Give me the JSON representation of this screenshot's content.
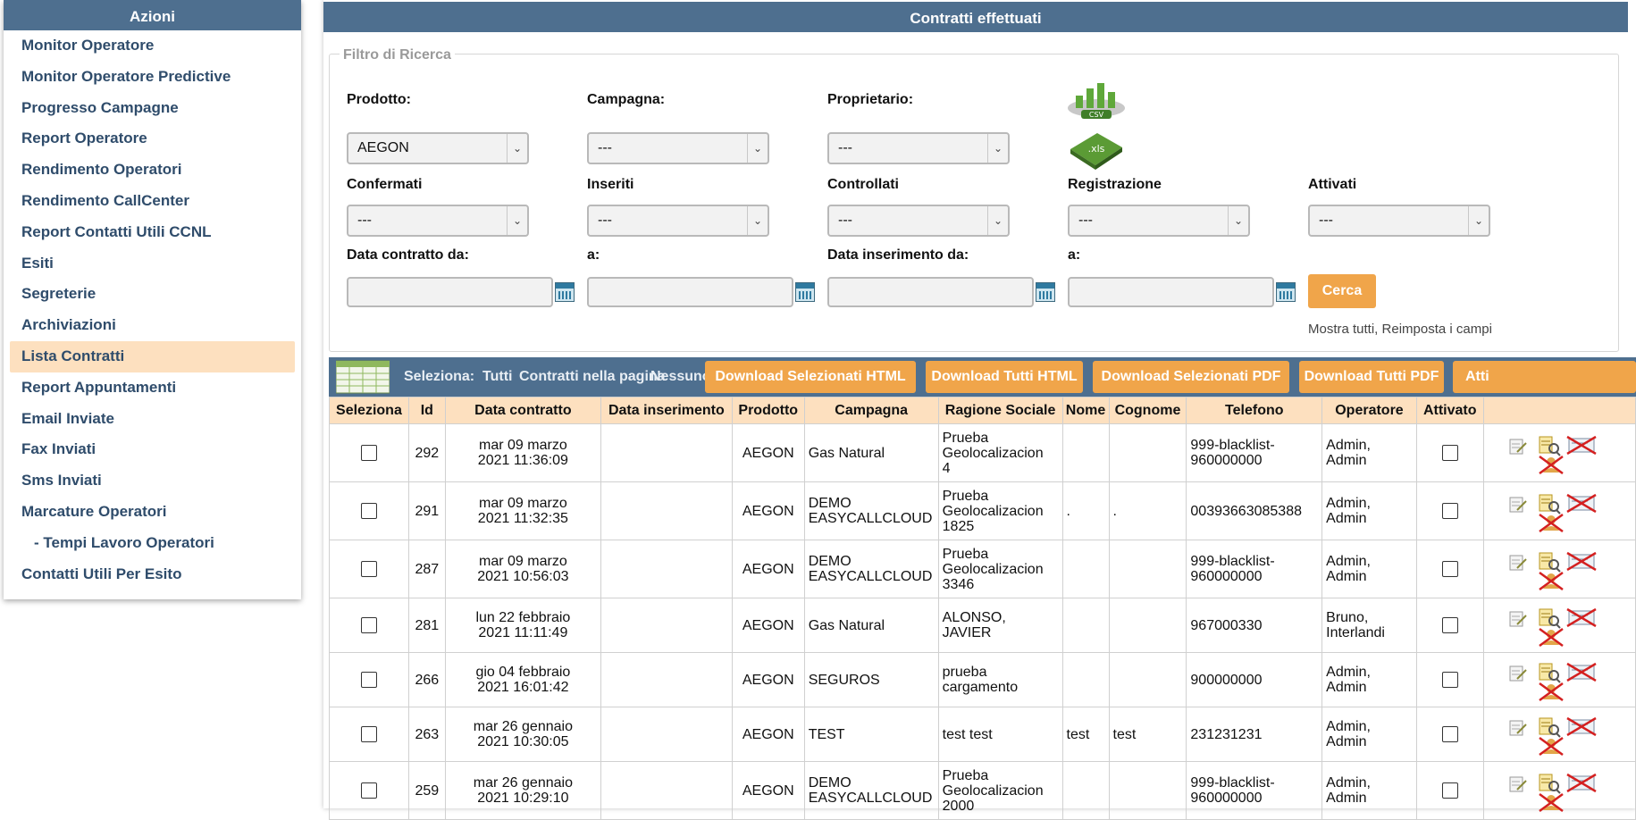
{
  "sidebar": {
    "title": "Azioni",
    "items": [
      {
        "label": "Monitor Operatore"
      },
      {
        "label": "Monitor Operatore Predictive"
      },
      {
        "label": "Progresso Campagne"
      },
      {
        "label": "Report Operatore"
      },
      {
        "label": "Rendimento Operatori"
      },
      {
        "label": "Rendimento CallCenter"
      },
      {
        "label": "Report Contatti Utili CCNL"
      },
      {
        "label": "Esiti"
      },
      {
        "label": "Segreterie"
      },
      {
        "label": "Archiviazioni"
      },
      {
        "label": "Lista Contratti"
      },
      {
        "label": "Report Appuntamenti"
      },
      {
        "label": "Email Inviate"
      },
      {
        "label": "Fax Inviati"
      },
      {
        "label": "Sms Inviati"
      },
      {
        "label": "Marcature Operatori"
      },
      {
        "label": "- Tempi Lavoro Operatori"
      },
      {
        "label": "Contatti Utili Per Esito"
      }
    ]
  },
  "main": {
    "title": "Contratti effettuati",
    "filter": {
      "legend": "Filtro di Ricerca",
      "prodotto": {
        "label": "Prodotto:",
        "value": "AEGON"
      },
      "campagna": {
        "label": "Campagna:",
        "value": "---"
      },
      "proprietario": {
        "label": "Proprietario:",
        "value": "---"
      },
      "confermati": {
        "label": "Confermati",
        "value": "---"
      },
      "inseriti": {
        "label": "Inseriti",
        "value": "---"
      },
      "controllati": {
        "label": "Controllati",
        "value": "---"
      },
      "registrazione": {
        "label": "Registrazione",
        "value": "---"
      },
      "attivati": {
        "label": "Attivati",
        "value": "---"
      },
      "data_contratto_da": {
        "label": "Data contratto da:",
        "value": ""
      },
      "data_contratto_a": {
        "label": "a:",
        "value": ""
      },
      "data_inserimento_da": {
        "label": "Data inserimento da:",
        "value": ""
      },
      "data_inserimento_a": {
        "label": "a:",
        "value": ""
      },
      "search_button": "Cerca",
      "show_all": "Mostra tutti, Reimposta i campi",
      "csv_label": "CSV",
      "xls_label": ".xls"
    },
    "toolbar": {
      "seleziona": "Seleziona:",
      "tutti": "Tutti",
      "contratti_pagina": "Contratti nella pagina",
      "nessuno": "Nessuno",
      "buttons": [
        "Download Selezionati HTML",
        "Download Tutti HTML",
        "Download Selezionati PDF",
        "Download Tutti PDF",
        "Atti"
      ]
    },
    "table": {
      "headers": [
        "Seleziona",
        "Id",
        "Data contratto",
        "Data inserimento",
        "Prodotto",
        "Campagna",
        "Ragione Sociale",
        "Nome",
        "Cognome",
        "Telefono",
        "Operatore",
        "Attivato",
        ""
      ],
      "rows": [
        {
          "id": "292",
          "data1": "mar 09 marzo",
          "data2": "2021 11:36:09",
          "inserimento": "",
          "prodotto": "AEGON",
          "campagna1": "Gas Natural",
          "campagna2": "",
          "ragione1": "Prueba",
          "ragione2": "Geolocalizacion",
          "ragione3": "4",
          "nome": "",
          "cognome": "",
          "tel1": "999-blacklist-",
          "tel2": "960000000",
          "op1": "Admin,",
          "op2": "Admin"
        },
        {
          "id": "291",
          "data1": "mar 09 marzo",
          "data2": "2021 11:32:35",
          "inserimento": "",
          "prodotto": "AEGON",
          "campagna1": "DEMO",
          "campagna2": "EASYCALLCLOUD",
          "ragione1": "Prueba",
          "ragione2": "Geolocalizacion",
          "ragione3": "1825",
          "nome": ".",
          "cognome": ".",
          "tel1": "00393663085388",
          "tel2": "",
          "op1": "Admin,",
          "op2": "Admin"
        },
        {
          "id": "287",
          "data1": "mar 09 marzo",
          "data2": "2021 10:56:03",
          "inserimento": "",
          "prodotto": "AEGON",
          "campagna1": "DEMO",
          "campagna2": "EASYCALLCLOUD",
          "ragione1": "Prueba",
          "ragione2": "Geolocalizacion",
          "ragione3": "3346",
          "nome": "",
          "cognome": "",
          "tel1": "999-blacklist-",
          "tel2": "960000000",
          "op1": "Admin,",
          "op2": "Admin"
        },
        {
          "id": "281",
          "data1": "lun 22 febbraio",
          "data2": "2021 11:11:49",
          "inserimento": "",
          "prodotto": "AEGON",
          "campagna1": "Gas Natural",
          "campagna2": "",
          "ragione1": "ALONSO,",
          "ragione2": "JAVIER",
          "ragione3": "",
          "nome": "",
          "cognome": "",
          "tel1": "967000330",
          "tel2": "",
          "op1": "Bruno,",
          "op2": "Interlandi"
        },
        {
          "id": "266",
          "data1": "gio 04 febbraio",
          "data2": "2021 16:01:42",
          "inserimento": "",
          "prodotto": "AEGON",
          "campagna1": "SEGUROS",
          "campagna2": "",
          "ragione1": "prueba",
          "ragione2": "cargamento",
          "ragione3": "",
          "nome": "",
          "cognome": "",
          "tel1": "900000000",
          "tel2": "",
          "op1": "Admin,",
          "op2": "Admin"
        },
        {
          "id": "263",
          "data1": "mar 26 gennaio",
          "data2": "2021 10:30:05",
          "inserimento": "",
          "prodotto": "AEGON",
          "campagna1": "TEST",
          "campagna2": "",
          "ragione1": "test test",
          "ragione2": "",
          "ragione3": "",
          "nome": "test",
          "cognome": "test",
          "tel1": "231231231",
          "tel2": "",
          "op1": "Admin,",
          "op2": "Admin"
        },
        {
          "id": "259",
          "data1": "mar 26 gennaio",
          "data2": "2021 10:29:10",
          "inserimento": "",
          "prodotto": "AEGON",
          "campagna1": "DEMO",
          "campagna2": "EASYCALLCLOUD",
          "ragione1": "Prueba",
          "ragione2": "Geolocalizacion",
          "ragione3": "2000",
          "nome": "",
          "cognome": "",
          "tel1": "999-blacklist-",
          "tel2": "960000000",
          "op1": "Admin,",
          "op2": "Admin"
        }
      ]
    }
  }
}
